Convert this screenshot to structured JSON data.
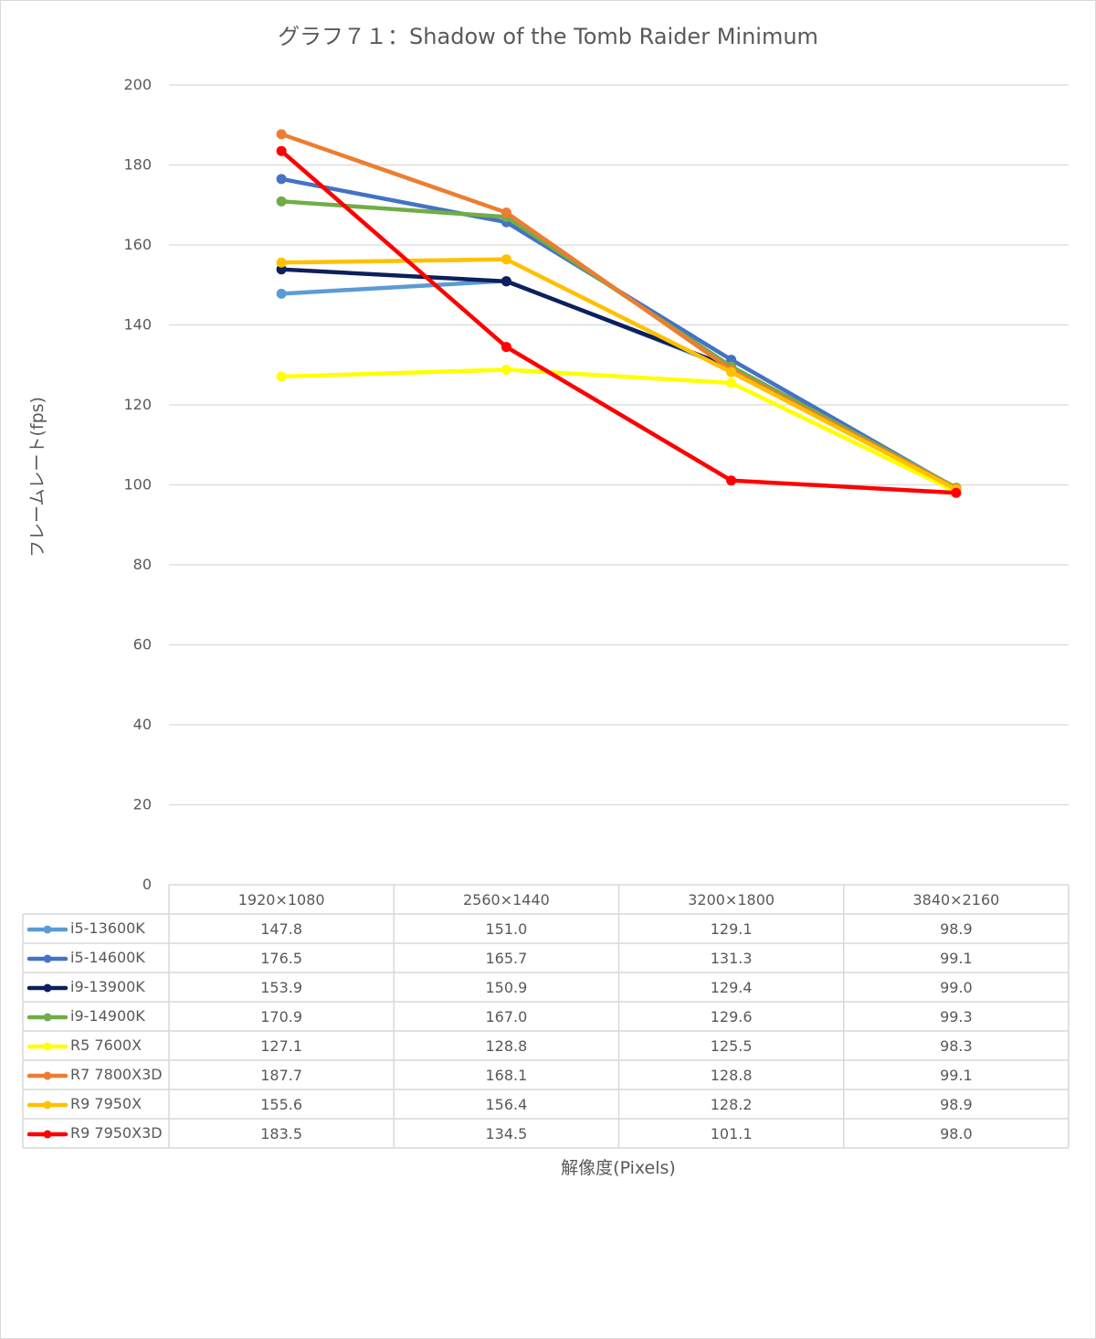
{
  "chart_data": {
    "type": "line",
    "title": "グラフ７１：Shadow of the Tomb Raider Minimum",
    "xlabel": "解像度(Pixels)",
    "ylabel": "フレームレート(fps)",
    "ylim": [
      0,
      200
    ],
    "yticks": [
      "0",
      "20",
      "40",
      "60",
      "80",
      "100",
      "120",
      "140",
      "160",
      "180",
      "200"
    ],
    "grid": true,
    "legend": "data-table",
    "categories": [
      "1920×1080",
      "2560×1440",
      "3200×1800",
      "3840×2160"
    ],
    "series": [
      {
        "name": "i5-13600K",
        "color": "#5b9bd5",
        "values": [
          147.8,
          151.0,
          129.1,
          98.9
        ],
        "labels": [
          "147.8",
          "151.0",
          "129.1",
          "98.9"
        ]
      },
      {
        "name": "i5-14600K",
        "color": "#4472c4",
        "values": [
          176.5,
          165.7,
          131.3,
          99.1
        ],
        "labels": [
          "176.5",
          "165.7",
          "131.3",
          "99.1"
        ]
      },
      {
        "name": "i9-13900K",
        "color": "#0d1f5c",
        "values": [
          153.9,
          150.9,
          129.4,
          99.0
        ],
        "labels": [
          "153.9",
          "150.9",
          "129.4",
          "99.0"
        ]
      },
      {
        "name": "i9-14900K",
        "color": "#70ad47",
        "values": [
          170.9,
          167.0,
          129.6,
          99.3
        ],
        "labels": [
          "170.9",
          "167.0",
          "129.6",
          "99.3"
        ]
      },
      {
        "name": "R5 7600X",
        "color": "#ffff00",
        "values": [
          127.1,
          128.8,
          125.5,
          98.3
        ],
        "labels": [
          "127.1",
          "128.8",
          "125.5",
          "98.3"
        ]
      },
      {
        "name": "R7 7800X3D",
        "color": "#ed7d31",
        "values": [
          187.7,
          168.1,
          128.8,
          99.1
        ],
        "labels": [
          "187.7",
          "168.1",
          "128.8",
          "99.1"
        ]
      },
      {
        "name": "R9 7950X",
        "color": "#ffc000",
        "values": [
          155.6,
          156.4,
          128.2,
          98.9
        ],
        "labels": [
          "155.6",
          "156.4",
          "128.2",
          "98.9"
        ]
      },
      {
        "name": "R9 7950X3D",
        "color": "#ff0000",
        "values": [
          183.5,
          134.5,
          101.1,
          98.0
        ],
        "labels": [
          "183.5",
          "134.5",
          "101.1",
          "98.0"
        ]
      }
    ]
  }
}
